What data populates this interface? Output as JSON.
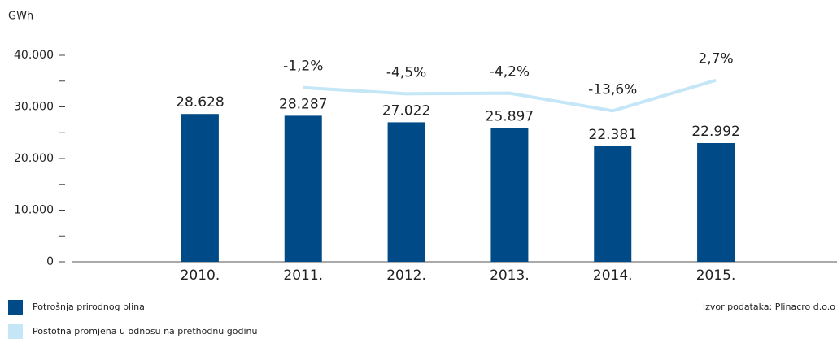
{
  "chart_data": {
    "type": "bar",
    "y_label": "GWh",
    "categories": [
      "2010.",
      "2011.",
      "2012.",
      "2013.",
      "2014.",
      "2015."
    ],
    "series": [
      {
        "name": "Potrošnja prirodnog plina",
        "type": "bar",
        "color": "#004b87",
        "values": [
          28628,
          28287,
          27022,
          25897,
          22381,
          22992
        ],
        "value_labels": [
          "28.628",
          "28.287",
          "27.022",
          "25.897",
          "22.381",
          "22.992"
        ]
      },
      {
        "name": "Postotna promjena u odnosu na prethodnu godinu",
        "type": "line",
        "axis": "y2",
        "color": "#c5e6f7",
        "values": [
          null,
          -1.2,
          -4.5,
          -4.2,
          -13.6,
          2.7
        ],
        "value_labels": [
          null,
          "-1,2%",
          "-4,5%",
          "-4,2%",
          "-13,6%",
          "2,7%"
        ]
      }
    ],
    "ylim": [
      0,
      40000
    ],
    "yticks": [
      0,
      {
        "value": 10000,
        "label": "10.000"
      },
      {
        "value": 20000,
        "label": "20.000"
      },
      {
        "value": 30000,
        "label": "30.000"
      },
      {
        "value": 40000,
        "label": "40.000"
      }
    ],
    "yminor": [
      5000,
      15000,
      25000,
      35000
    ],
    "y2lim": [
      -94,
      16
    ],
    "source": "Izvor podataka: Plinacro d.o.o"
  }
}
